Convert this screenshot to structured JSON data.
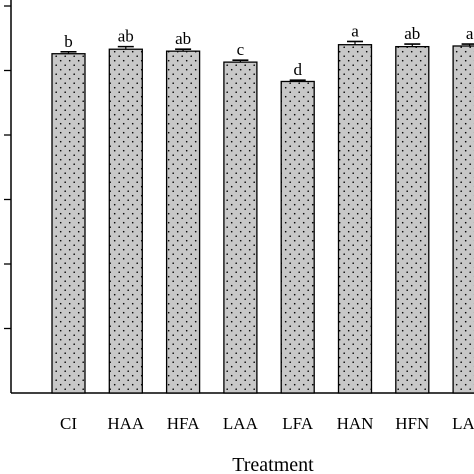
{
  "chart_data": {
    "type": "bar",
    "title": "",
    "xlabel": "Treatment",
    "ylabel": "",
    "categories": [
      "CI",
      "HAA",
      "HFA",
      "LAA",
      "LFA",
      "HAN",
      "HFN",
      "LAN"
    ],
    "values": [
      5.26,
      5.33,
      5.3,
      5.13,
      4.83,
      5.4,
      5.37,
      5.38
    ],
    "errors": [
      0.03,
      0.04,
      0.03,
      0.03,
      0.02,
      0.05,
      0.04,
      0.03
    ],
    "significance_letters": [
      "b",
      "ab",
      "ab",
      "c",
      "d",
      "a",
      "ab",
      "a"
    ],
    "ylim": [
      0,
      6
    ],
    "y_tick_count": 6,
    "y_tick_labels_visible": false,
    "grid": false,
    "bar_fill": "#c8c8c8",
    "bar_pattern": "stipple",
    "bar_stroke": "#000000"
  }
}
